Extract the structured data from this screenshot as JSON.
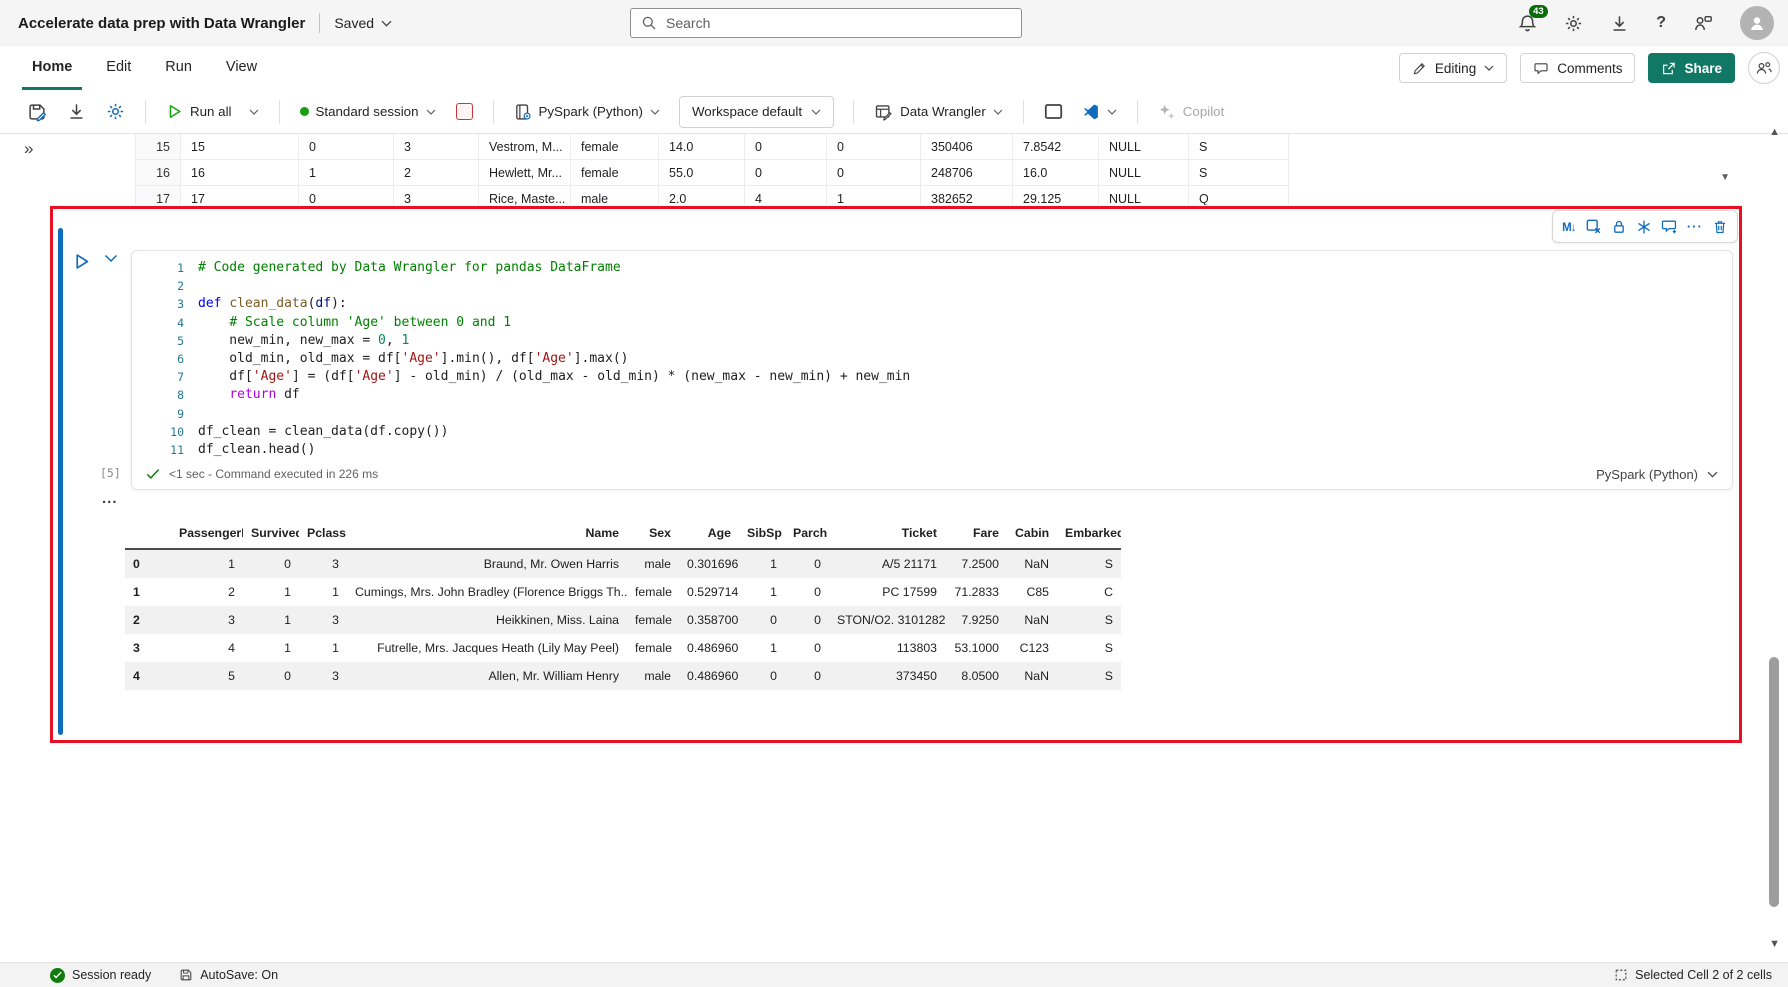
{
  "colors": {
    "accent_blue": "#0f6cbd",
    "brand_green": "#117865",
    "run_green": "#13a10e",
    "stop_red": "#d13438",
    "annotation_red": "#e81123",
    "badge_green": "#0b6a0b"
  },
  "titlebar": {
    "title": "Accelerate data prep with Data Wrangler",
    "saved_label": "Saved",
    "search_placeholder": "Search",
    "notification_count": "43"
  },
  "menubar": {
    "tabs": [
      "Home",
      "Edit",
      "Run",
      "View"
    ],
    "editing_label": "Editing",
    "comments_label": "Comments",
    "share_label": "Share"
  },
  "toolbar": {
    "run_all_label": "Run all",
    "session_label": "Standard session",
    "kernel_label": "PySpark (Python)",
    "workspace_label": "Workspace default",
    "data_wrangler_label": "Data Wrangler",
    "copilot_label": "Copilot"
  },
  "grid": {
    "collapse_glyph": "»",
    "rows": [
      [
        "15",
        "15",
        "0",
        "3",
        "Vestrom, M...",
        "female",
        "14.0",
        "0",
        "0",
        "350406",
        "7.8542",
        "NULL",
        "S"
      ],
      [
        "16",
        "16",
        "1",
        "2",
        "Hewlett, Mr...",
        "female",
        "55.0",
        "0",
        "0",
        "248706",
        "16.0",
        "NULL",
        "S"
      ],
      [
        "17",
        "17",
        "0",
        "3",
        "Rice, Maste...",
        "male",
        "2.0",
        "4",
        "1",
        "382652",
        "29.125",
        "NULL",
        "Q"
      ]
    ]
  },
  "cell": {
    "execution_count": "[5]",
    "status_text": "<1 sec - Command executed in 226 ms",
    "kernel_label": "PySpark (Python)",
    "collapsed_indicator": "...",
    "markdown_glyph": "M↓",
    "more_glyph": "···",
    "lines": [
      {
        "n": "1",
        "tk": [
          [
            "c",
            "# Code generated by Data Wrangler for pandas DataFrame"
          ]
        ]
      },
      {
        "n": "2",
        "tk": []
      },
      {
        "n": "3",
        "tk": [
          [
            "k",
            "def"
          ],
          [
            "p",
            " "
          ],
          [
            "f",
            "clean_data"
          ],
          [
            "p",
            "("
          ],
          [
            "v",
            "df"
          ],
          [
            "p",
            "):"
          ]
        ]
      },
      {
        "n": "4",
        "tk": [
          [
            "p",
            "    "
          ],
          [
            "c",
            "# Scale column 'Age' between 0 and 1"
          ]
        ]
      },
      {
        "n": "5",
        "tk": [
          [
            "p",
            "    new_min, new_max = "
          ],
          [
            "n",
            "0"
          ],
          [
            "p",
            ", "
          ],
          [
            "n",
            "1"
          ]
        ]
      },
      {
        "n": "6",
        "tk": [
          [
            "p",
            "    old_min, old_max = df["
          ],
          [
            "s",
            "'Age'"
          ],
          [
            "p",
            "].min(), df["
          ],
          [
            "s",
            "'Age'"
          ],
          [
            "p",
            "].max()"
          ]
        ]
      },
      {
        "n": "7",
        "tk": [
          [
            "p",
            "    df["
          ],
          [
            "s",
            "'Age'"
          ],
          [
            "p",
            "] = (df["
          ],
          [
            "s",
            "'Age'"
          ],
          [
            "p",
            "] - old_min) / (old_max - old_min) * (new_max - new_min) + new_min"
          ]
        ]
      },
      {
        "n": "8",
        "tk": [
          [
            "p",
            "    "
          ],
          [
            "r",
            "return"
          ],
          [
            "p",
            " df"
          ]
        ]
      },
      {
        "n": "9",
        "tk": []
      },
      {
        "n": "10",
        "tk": [
          [
            "p",
            "df_clean = clean_data(df.copy())"
          ]
        ]
      },
      {
        "n": "11",
        "tk": [
          [
            "p",
            "df_clean.head()"
          ]
        ]
      }
    ]
  },
  "output_table": {
    "columns": [
      "",
      "PassengerId",
      "Survived",
      "Pclass",
      "Name",
      "Sex",
      "Age",
      "SibSp",
      "Parch",
      "Ticket",
      "Fare",
      "Cabin",
      "Embarked"
    ],
    "rows": [
      [
        "0",
        "1",
        "0",
        "3",
        "Braund, Mr. Owen Harris",
        "male",
        "0.301696",
        "1",
        "0",
        "A/5 21171",
        "7.2500",
        "NaN",
        "S"
      ],
      [
        "1",
        "2",
        "1",
        "1",
        "Cumings, Mrs. John Bradley (Florence Briggs Th...",
        "female",
        "0.529714",
        "1",
        "0",
        "PC 17599",
        "71.2833",
        "C85",
        "C"
      ],
      [
        "2",
        "3",
        "1",
        "3",
        "Heikkinen, Miss. Laina",
        "female",
        "0.358700",
        "0",
        "0",
        "STON/O2. 3101282",
        "7.9250",
        "NaN",
        "S"
      ],
      [
        "3",
        "4",
        "1",
        "1",
        "Futrelle, Mrs. Jacques Heath (Lily May Peel)",
        "female",
        "0.486960",
        "1",
        "0",
        "113803",
        "53.1000",
        "C123",
        "S"
      ],
      [
        "4",
        "5",
        "0",
        "3",
        "Allen, Mr. William Henry",
        "male",
        "0.486960",
        "0",
        "0",
        "373450",
        "8.0500",
        "NaN",
        "S"
      ]
    ]
  },
  "statusbar": {
    "session_label": "Session ready",
    "autosave_label": "AutoSave: On",
    "selection_label": "Selected Cell 2 of 2 cells"
  }
}
